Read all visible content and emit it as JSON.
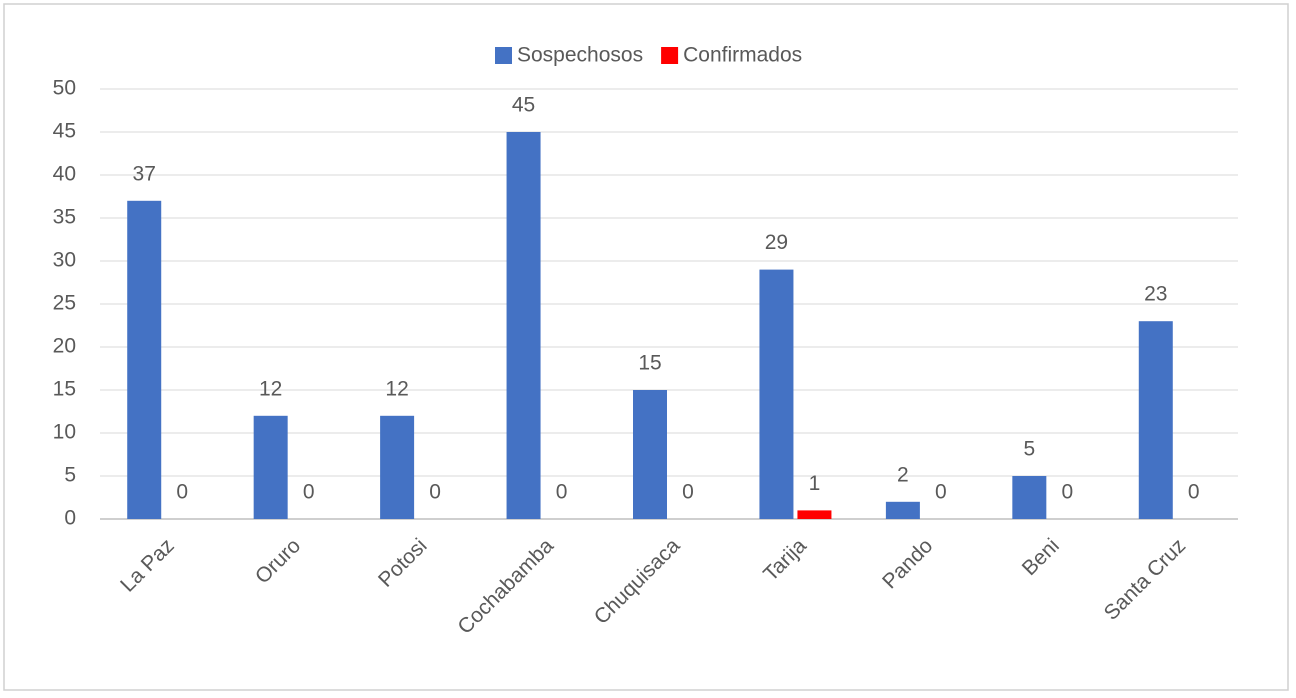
{
  "chart_data": {
    "type": "bar",
    "categories": [
      "La Paz",
      "Oruro",
      "Potosi",
      "Cochabamba",
      "Chuquisaca",
      "Tarija",
      "Pando",
      "Beni",
      "Santa Cruz"
    ],
    "series": [
      {
        "name": "Sospechosos",
        "color": "#4472c4",
        "values": [
          37,
          12,
          12,
          45,
          15,
          29,
          2,
          5,
          23
        ]
      },
      {
        "name": "Confirmados",
        "color": "#ff0000",
        "values": [
          0,
          0,
          0,
          0,
          0,
          1,
          0,
          0,
          0
        ]
      }
    ],
    "ylim": [
      0,
      50
    ],
    "yticks": [
      0,
      5,
      10,
      15,
      20,
      25,
      30,
      35,
      40,
      45,
      50
    ],
    "grid": true,
    "legend": "top"
  }
}
